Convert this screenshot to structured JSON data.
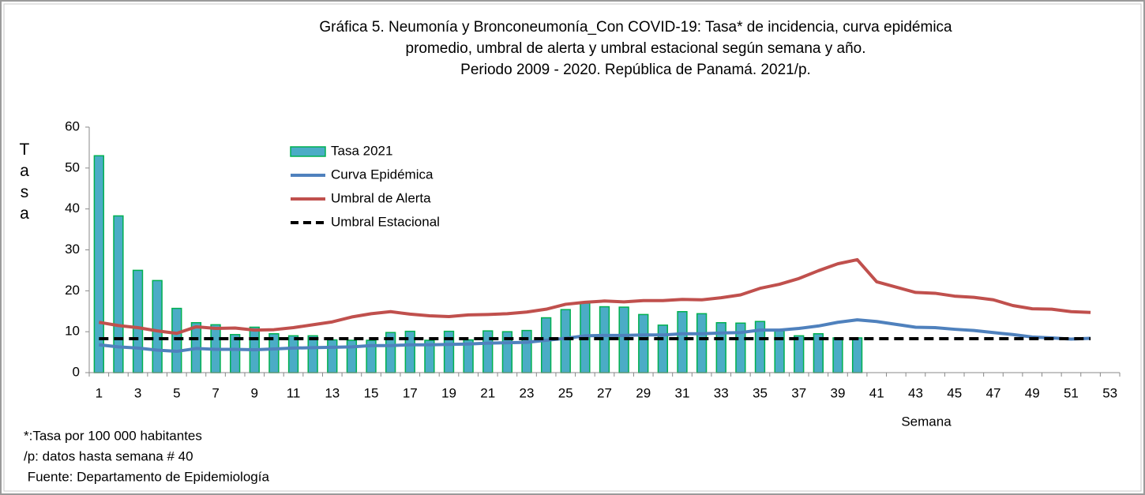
{
  "chart_data": {
    "type": "bar",
    "title": [
      "Gráfica 5. Neumonía y Bronconeumonía_Con COVID-19: Tasa* de incidencia, curva epidémica",
      "promedio, umbral de alerta  y umbral estacional según semana y año.",
      "Periodo 2009 - 2020.  República de Panamá. 2021/p."
    ],
    "y_label": "Tasa",
    "x_label": "Semana",
    "notes": [
      "*:Tasa por 100 000 habitantes",
      "/p: datos hasta semana # 40",
      " Fuente: Departamento de Epidemiología"
    ],
    "categories": [
      1,
      null,
      3,
      null,
      5,
      null,
      7,
      null,
      9,
      null,
      11,
      null,
      13,
      null,
      15,
      null,
      17,
      null,
      19,
      null,
      21,
      null,
      23,
      null,
      25,
      null,
      27,
      null,
      29,
      null,
      31,
      null,
      33,
      null,
      35,
      null,
      37,
      null,
      39,
      null,
      41,
      null,
      43,
      null,
      45,
      null,
      47,
      null,
      49,
      null,
      51,
      null,
      53
    ],
    "ylim": [
      0,
      60
    ],
    "yticks": [
      0,
      10,
      20,
      30,
      40,
      50,
      60
    ],
    "grid": false,
    "legend": "top-left",
    "series": [
      {
        "name": "Tasa 2021",
        "type": "bar",
        "color": "#4bacc6",
        "edge": "#00b050",
        "values": [
          53,
          38.3,
          25,
          22.5,
          15.7,
          12.2,
          11.7,
          9.3,
          11.1,
          9.5,
          9.0,
          9.0,
          8.0,
          7.9,
          7.9,
          9.8,
          10.1,
          7.9,
          10.1,
          8.0,
          10.2,
          10.0,
          10.3,
          13.4,
          15.4,
          17.0,
          16.1,
          16.0,
          14.2,
          11.6,
          14.9,
          14.4,
          12.2,
          12.1,
          12.5,
          10.2,
          9.0,
          9.5,
          8.5,
          8.5,
          null,
          null,
          null,
          null,
          null,
          null,
          null,
          null,
          null,
          null,
          null,
          null,
          null
        ]
      },
      {
        "name": "Curva Epidémica",
        "type": "line",
        "color": "#4f81bd",
        "values": [
          6.8,
          6.3,
          6.0,
          5.5,
          5.2,
          5.9,
          5.7,
          5.7,
          5.6,
          5.8,
          6.0,
          6.1,
          6.2,
          6.3,
          6.6,
          6.6,
          6.8,
          6.8,
          6.9,
          7.0,
          7.2,
          7.3,
          7.4,
          7.9,
          8.4,
          9.0,
          9.1,
          9.1,
          9.2,
          9.2,
          9.5,
          9.5,
          9.7,
          9.8,
          10.4,
          10.4,
          10.8,
          11.4,
          12.3,
          12.9,
          12.5,
          11.8,
          11.1,
          11.0,
          10.6,
          10.3,
          9.8,
          9.3,
          8.7,
          8.5,
          8.2,
          8.4,
          null
        ]
      },
      {
        "name": "Umbral de Alerta",
        "type": "line",
        "color": "#c0504d",
        "values": [
          12.3,
          11.5,
          11.0,
          10.2,
          9.6,
          11.2,
          10.8,
          10.9,
          10.4,
          10.5,
          11.0,
          11.7,
          12.4,
          13.6,
          14.4,
          14.9,
          14.3,
          13.9,
          13.7,
          14.1,
          14.2,
          14.4,
          14.8,
          15.5,
          16.7,
          17.2,
          17.5,
          17.3,
          17.6,
          17.6,
          17.9,
          17.8,
          18.3,
          19.0,
          20.6,
          21.6,
          23.0,
          24.9,
          26.6,
          27.6,
          22.2,
          20.9,
          19.6,
          19.4,
          18.7,
          18.4,
          17.8,
          16.4,
          15.6,
          15.5,
          14.9,
          14.7,
          null
        ]
      },
      {
        "name": "Umbral Estacional",
        "type": "line",
        "color": "#000000",
        "dashed": true,
        "values": [
          8.3,
          8.3,
          8.3,
          8.3,
          8.3,
          8.3,
          8.3,
          8.3,
          8.3,
          8.3,
          8.3,
          8.3,
          8.3,
          8.3,
          8.3,
          8.3,
          8.3,
          8.3,
          8.3,
          8.3,
          8.3,
          8.3,
          8.3,
          8.3,
          8.3,
          8.3,
          8.3,
          8.3,
          8.3,
          8.3,
          8.3,
          8.3,
          8.3,
          8.3,
          8.3,
          8.3,
          8.3,
          8.3,
          8.3,
          8.3,
          8.3,
          8.3,
          8.3,
          8.3,
          8.3,
          8.3,
          8.3,
          8.3,
          8.3,
          8.3,
          8.3,
          8.3,
          null
        ]
      }
    ]
  }
}
